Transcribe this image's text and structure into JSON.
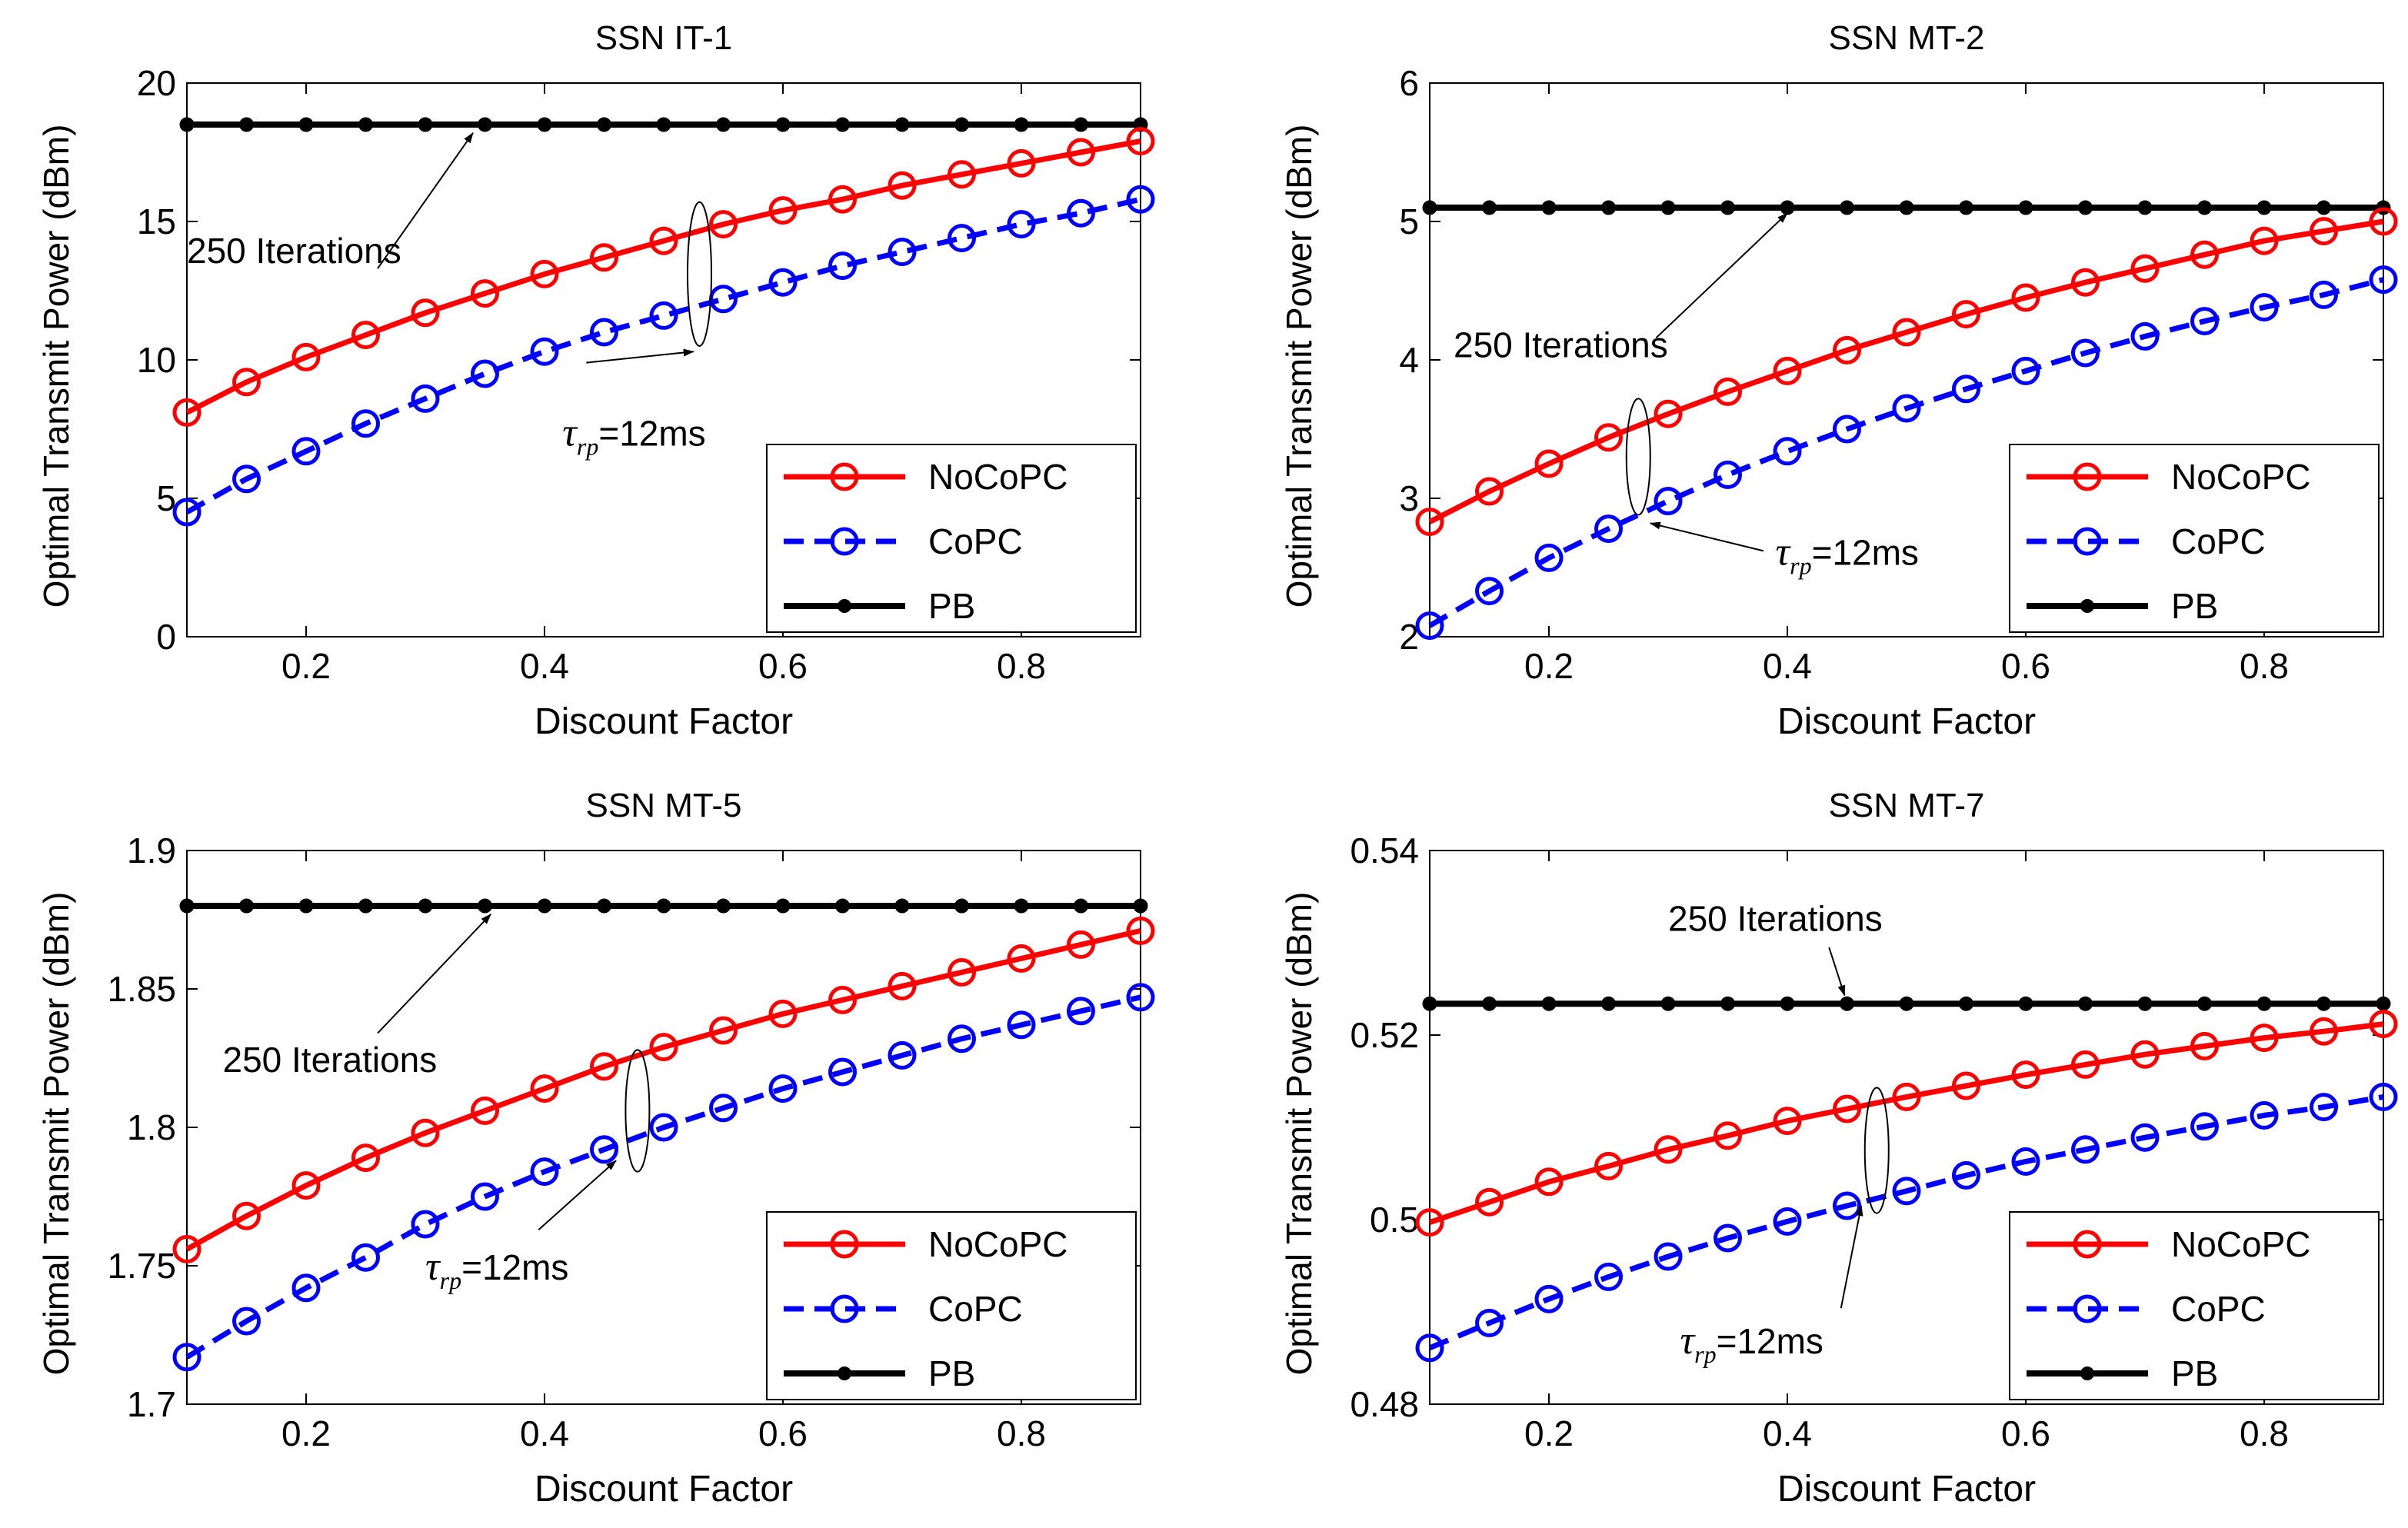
{
  "figure": {
    "description_domain": "chart"
  },
  "colors": {
    "nocopc": "#ff0000",
    "copc": "#0000ff",
    "pb": "#000000",
    "axis": "#000000"
  },
  "chart_data": [
    {
      "type": "line",
      "title": "SSN IT-1",
      "xlabel": "Discount Factor",
      "ylabel": "Optimal Transmit Power (dBm)",
      "xlim": [
        0.1,
        0.9
      ],
      "ylim": [
        0,
        20
      ],
      "xticks": [
        0.2,
        0.4,
        0.6,
        0.8
      ],
      "xtick_labels": [
        "0.2",
        "0.4",
        "0.6",
        "0.8"
      ],
      "yticks": [
        0,
        5,
        10,
        15,
        20
      ],
      "ytick_labels": [
        "0",
        "5",
        "10",
        "15",
        "20"
      ],
      "x": [
        0.1,
        0.15,
        0.2,
        0.25,
        0.3,
        0.35,
        0.4,
        0.45,
        0.5,
        0.55,
        0.6,
        0.65,
        0.7,
        0.75,
        0.8,
        0.85,
        0.9
      ],
      "series": [
        {
          "name": "NoCoPC",
          "style": "solid",
          "marker": "open-circle",
          "values": [
            8.1,
            9.2,
            10.1,
            10.9,
            11.7,
            12.4,
            13.1,
            13.7,
            14.3,
            14.9,
            15.4,
            15.8,
            16.3,
            16.7,
            17.1,
            17.5,
            17.9
          ]
        },
        {
          "name": "CoPC",
          "style": "dashed",
          "marker": "open-circle",
          "values": [
            4.5,
            5.7,
            6.7,
            7.7,
            8.6,
            9.5,
            10.3,
            11.0,
            11.6,
            12.2,
            12.8,
            13.4,
            13.9,
            14.4,
            14.9,
            15.3,
            15.8
          ]
        },
        {
          "name": "PB",
          "style": "solid",
          "marker": "dot",
          "values": [
            18.5,
            18.5,
            18.5,
            18.5,
            18.5,
            18.5,
            18.5,
            18.5,
            18.5,
            18.5,
            18.5,
            18.5,
            18.5,
            18.5,
            18.5,
            18.5,
            18.5
          ]
        }
      ],
      "legend": {
        "position": "bottom-right",
        "entries": [
          "NoCoPC",
          "CoPC",
          "PB"
        ]
      },
      "annotations": [
        {
          "text": "250 Iterations",
          "kind": "arrow",
          "from": [
            0.26,
            13.3
          ],
          "to": [
            0.34,
            18.2
          ],
          "text_at": [
            0.1,
            13.5
          ]
        },
        {
          "text_main": "τ",
          "text_sub": "rp",
          "text_after": "=12ms",
          "kind": "ellipse-arrow",
          "ellipse_center": [
            0.53,
            13.1
          ],
          "ellipse_rx": 0.01,
          "ellipse_ry": 2.6,
          "from": [
            0.435,
            9.9
          ],
          "to": [
            0.525,
            10.3
          ],
          "text_at": [
            0.415,
            6.9
          ]
        }
      ]
    },
    {
      "type": "line",
      "title": "SSN MT-2",
      "xlabel": "Discount Factor",
      "ylabel": "Optimal Transmit Power (dBm)",
      "xlim": [
        0.1,
        0.9
      ],
      "ylim": [
        2,
        6
      ],
      "xticks": [
        0.2,
        0.4,
        0.6,
        0.8
      ],
      "xtick_labels": [
        "0.2",
        "0.4",
        "0.6",
        "0.8"
      ],
      "yticks": [
        2,
        3,
        4,
        5,
        6
      ],
      "ytick_labels": [
        "2",
        "3",
        "4",
        "5",
        "6"
      ],
      "x": [
        0.1,
        0.15,
        0.2,
        0.25,
        0.3,
        0.35,
        0.4,
        0.45,
        0.5,
        0.55,
        0.6,
        0.65,
        0.7,
        0.75,
        0.8,
        0.85,
        0.9
      ],
      "series": [
        {
          "name": "NoCoPC",
          "style": "solid",
          "marker": "open-circle",
          "values": [
            2.83,
            3.05,
            3.25,
            3.44,
            3.61,
            3.77,
            3.92,
            4.07,
            4.2,
            4.33,
            4.45,
            4.56,
            4.66,
            4.76,
            4.86,
            4.93,
            5.0
          ]
        },
        {
          "name": "CoPC",
          "style": "dashed",
          "marker": "open-circle",
          "values": [
            2.08,
            2.33,
            2.57,
            2.78,
            2.98,
            3.17,
            3.34,
            3.5,
            3.65,
            3.79,
            3.92,
            4.05,
            4.17,
            4.28,
            4.38,
            4.47,
            4.58
          ]
        },
        {
          "name": "PB",
          "style": "solid",
          "marker": "dot",
          "values": [
            5.1,
            5.1,
            5.1,
            5.1,
            5.1,
            5.1,
            5.1,
            5.1,
            5.1,
            5.1,
            5.1,
            5.1,
            5.1,
            5.1,
            5.1,
            5.1,
            5.1
          ]
        }
      ],
      "legend": {
        "position": "bottom-right",
        "entries": [
          "NoCoPC",
          "CoPC",
          "PB"
        ]
      },
      "annotations": [
        {
          "text": "250 Iterations",
          "kind": "arrow",
          "from": [
            0.29,
            4.16
          ],
          "to": [
            0.4,
            5.06
          ],
          "text_at": [
            0.12,
            4.02
          ]
        },
        {
          "text_main": "τ",
          "text_sub": "rp",
          "text_after": "=12ms",
          "kind": "ellipse-arrow",
          "ellipse_center": [
            0.275,
            3.3
          ],
          "ellipse_rx": 0.01,
          "ellipse_ry": 0.42,
          "from": [
            0.38,
            2.62
          ],
          "to": [
            0.285,
            2.82
          ],
          "text_at": [
            0.39,
            2.52
          ]
        }
      ]
    },
    {
      "type": "line",
      "title": "SSN MT-5",
      "xlabel": "Discount Factor",
      "ylabel": "Optimal Transmit Power (dBm)",
      "xlim": [
        0.1,
        0.9
      ],
      "ylim": [
        1.7,
        1.9
      ],
      "xticks": [
        0.2,
        0.4,
        0.6,
        0.8
      ],
      "xtick_labels": [
        "0.2",
        "0.4",
        "0.6",
        "0.8"
      ],
      "yticks": [
        1.7,
        1.75,
        1.8,
        1.85,
        1.9
      ],
      "ytick_labels": [
        "1.7",
        "1.75",
        "1.8",
        "1.85",
        "1.9"
      ],
      "x": [
        0.1,
        0.15,
        0.2,
        0.25,
        0.3,
        0.35,
        0.4,
        0.45,
        0.5,
        0.55,
        0.6,
        0.65,
        0.7,
        0.75,
        0.8,
        0.85,
        0.9
      ],
      "series": [
        {
          "name": "NoCoPC",
          "style": "solid",
          "marker": "open-circle",
          "values": [
            1.756,
            1.768,
            1.779,
            1.789,
            1.798,
            1.806,
            1.814,
            1.822,
            1.829,
            1.835,
            1.841,
            1.846,
            1.851,
            1.856,
            1.861,
            1.866,
            1.871
          ]
        },
        {
          "name": "CoPC",
          "style": "dashed",
          "marker": "open-circle",
          "values": [
            1.717,
            1.73,
            1.742,
            1.753,
            1.765,
            1.775,
            1.784,
            1.792,
            1.8,
            1.807,
            1.814,
            1.82,
            1.826,
            1.832,
            1.837,
            1.842,
            1.847
          ]
        },
        {
          "name": "PB",
          "style": "solid",
          "marker": "dot",
          "values": [
            1.88,
            1.88,
            1.88,
            1.88,
            1.88,
            1.88,
            1.88,
            1.88,
            1.88,
            1.88,
            1.88,
            1.88,
            1.88,
            1.88,
            1.88,
            1.88,
            1.88
          ]
        }
      ],
      "legend": {
        "position": "bottom-right",
        "entries": [
          "NoCoPC",
          "CoPC",
          "PB"
        ]
      },
      "annotations": [
        {
          "text": "250 Iterations",
          "kind": "arrow",
          "from": [
            0.26,
            1.834
          ],
          "to": [
            0.355,
            1.877
          ],
          "text_at": [
            0.13,
            1.82
          ]
        },
        {
          "text_main": "τ",
          "text_sub": "rp",
          "text_after": "=12ms",
          "kind": "ellipse-arrow",
          "ellipse_center": [
            0.478,
            1.806
          ],
          "ellipse_rx": 0.01,
          "ellipse_ry": 0.022,
          "from": [
            0.395,
            1.763
          ],
          "to": [
            0.46,
            1.788
          ],
          "text_at": [
            0.3,
            1.745
          ]
        }
      ]
    },
    {
      "type": "line",
      "title": "SSN MT-7",
      "xlabel": "Discount Factor",
      "ylabel": "Optimal Transmit Power (dBm)",
      "xlim": [
        0.1,
        0.9
      ],
      "ylim": [
        0.48,
        0.54
      ],
      "xticks": [
        0.2,
        0.4,
        0.6,
        0.8
      ],
      "xtick_labels": [
        "0.2",
        "0.4",
        "0.6",
        "0.8"
      ],
      "yticks": [
        0.48,
        0.5,
        0.52,
        0.54
      ],
      "ytick_labels": [
        "0.48",
        "0.5",
        "0.52",
        "0.54"
      ],
      "x": [
        0.1,
        0.15,
        0.2,
        0.25,
        0.3,
        0.35,
        0.4,
        0.45,
        0.5,
        0.55,
        0.6,
        0.65,
        0.7,
        0.75,
        0.8,
        0.85,
        0.9
      ],
      "series": [
        {
          "name": "NoCoPC",
          "style": "solid",
          "marker": "open-circle",
          "values": [
            0.4997,
            0.5019,
            0.5041,
            0.5058,
            0.5076,
            0.5091,
            0.5107,
            0.512,
            0.5133,
            0.5145,
            0.5157,
            0.5168,
            0.5179,
            0.5188,
            0.5197,
            0.5204,
            0.5212
          ]
        },
        {
          "name": "CoPC",
          "style": "dashed",
          "marker": "open-circle",
          "values": [
            0.4861,
            0.4888,
            0.4914,
            0.4938,
            0.496,
            0.498,
            0.4998,
            0.5015,
            0.5031,
            0.5048,
            0.5063,
            0.5076,
            0.5089,
            0.5101,
            0.5113,
            0.5122,
            0.5133
          ]
        },
        {
          "name": "PB",
          "style": "solid",
          "marker": "dot",
          "values": [
            0.5234,
            0.5234,
            0.5234,
            0.5234,
            0.5234,
            0.5234,
            0.5234,
            0.5234,
            0.5234,
            0.5234,
            0.5234,
            0.5234,
            0.5234,
            0.5234,
            0.5234,
            0.5234,
            0.5234
          ]
        }
      ],
      "legend": {
        "position": "bottom-right",
        "entries": [
          "NoCoPC",
          "CoPC",
          "PB"
        ]
      },
      "annotations": [
        {
          "text": "250 Iterations",
          "kind": "arrow",
          "from": [
            0.435,
            0.5295
          ],
          "to": [
            0.448,
            0.5243
          ],
          "text_at": [
            0.3,
            0.5313
          ]
        },
        {
          "text_main": "τ",
          "text_sub": "rp",
          "text_after": "=12ms",
          "kind": "ellipse-arrow",
          "ellipse_center": [
            0.475,
            0.5075
          ],
          "ellipse_rx": 0.01,
          "ellipse_ry": 0.0068,
          "from": [
            0.445,
            0.4904
          ],
          "to": [
            0.462,
            0.5015
          ],
          "text_at": [
            0.31,
            0.4855
          ]
        }
      ]
    }
  ]
}
